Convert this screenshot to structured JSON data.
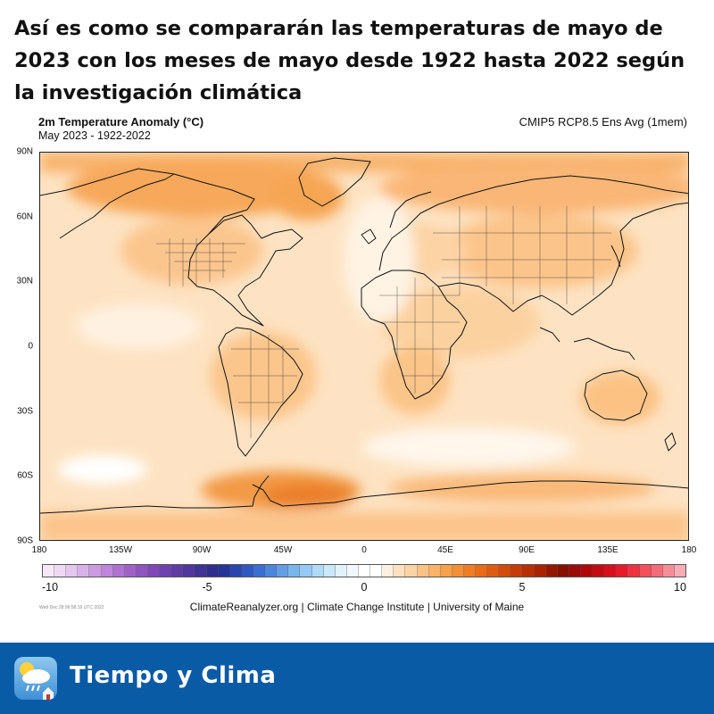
{
  "headline": "Así es como se compararán las temperaturas de mayo de 2023 con los meses de mayo desde 1922 hasta 2022 según la investigación climática",
  "map": {
    "title": "2m Temperature Anomaly (°C)",
    "subtitle": "May 2023 - 1922-2022",
    "model": "CMIP5 RCP8.5 Ens Avg (1mem)",
    "lat_labels": [
      "90N",
      "60N",
      "30N",
      "0",
      "30S",
      "60S",
      "90S"
    ],
    "lon_labels": [
      "180",
      "135W",
      "90W",
      "45W",
      "0",
      "45E",
      "90E",
      "135E",
      "180"
    ]
  },
  "colorbar": {
    "ticks": [
      "-10",
      "-5",
      "0",
      "5",
      "10"
    ],
    "colors": [
      "#f7e8f7",
      "#efd9f3",
      "#e5c6ef",
      "#d9b1ea",
      "#cb9be2",
      "#bd86da",
      "#ae72d2",
      "#9f62c9",
      "#8f54c0",
      "#7f48b6",
      "#6f41ad",
      "#5f3ca4",
      "#4f379b",
      "#3f3393",
      "#302f8b",
      "#263599",
      "#2a46ad",
      "#3158c0",
      "#3b6ed0",
      "#4d86dc",
      "#629ee6",
      "#7bb5ee",
      "#96c9f3",
      "#b1daf7",
      "#cbe8fa",
      "#e2f2fc",
      "#f1f8fd",
      "#ffffff",
      "#ffffff",
      "#fdf0e0",
      "#fde2c2",
      "#fcd3a2",
      "#fbc383",
      "#f9b266",
      "#f7a14b",
      "#f48f35",
      "#ef7d24",
      "#e86c18",
      "#de5b10",
      "#d34b0a",
      "#c63c06",
      "#b82e04",
      "#a82203",
      "#961802",
      "#861002",
      "#9a0a06",
      "#b0080a",
      "#c40a12",
      "#d6101c",
      "#e51a2a",
      "#ef3040",
      "#f34e5c",
      "#f46c7a",
      "#f58d98",
      "#f6adb5"
    ]
  },
  "stamp": "Wed Dec 28 06:58:19 UTC 2022",
  "credits": "ClimateReanalyzer.org | Climate Change Institute | University of Maine",
  "brand": {
    "name": "Tiempo y Clima",
    "footer_color": "#0a5ba5"
  }
}
